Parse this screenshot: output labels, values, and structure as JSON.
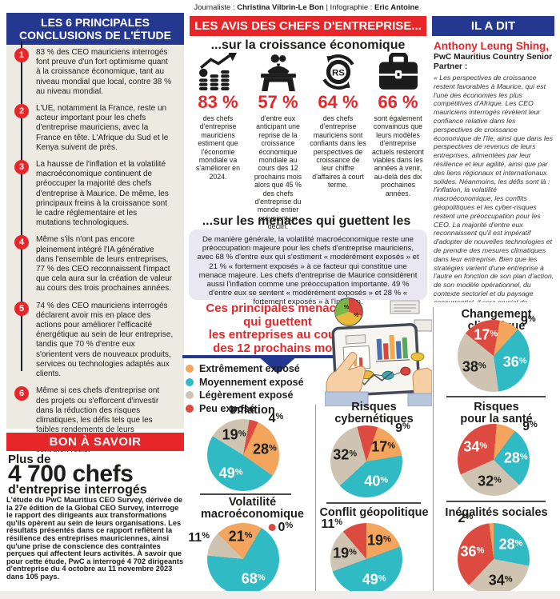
{
  "credits": {
    "label_journalist": "Journaliste : ",
    "journalist": "Christina Vilbrin-Le Bon",
    "label_infographic": " | Infographie : ",
    "infographic": "Eric Antoine"
  },
  "colors": {
    "brand_blue": "#24388f",
    "brand_red": "#e62629",
    "panel_beige": "#edeae2",
    "box_lavender": "#e9e7f1"
  },
  "left_panel": {
    "title": "LES 6 PRINCIPALES\nCONCLUSIONS DE L'ÉTUDE",
    "items": [
      {
        "num": "1",
        "text": "83 % des CEO mauriciens interrogés font preuve d'un fort optimisme quant à la croissance économique, tant au niveau mondial que local, contre 38 % au niveau mondial."
      },
      {
        "num": "2",
        "text": "L'UE, notamment la France, reste un acteur important pour les chefs d'entreprise mauriciens, avec la France en tête. L'Afrique du Sud et le Kenya suivent de près."
      },
      {
        "num": "3",
        "text": "La hausse de l'inflation et la volatilité macroéconomique continuent de préoccuper la majorité des chefs d'entreprise à Maurice. De même, les principaux freins à la croissance sont le cadre réglementaire et les mutations technologiques."
      },
      {
        "num": "4",
        "text": "Même s'ils n'ont pas encore pleinement intégré l'IA générative dans l'ensemble de leurs entreprises, 77 % des CEO reconnaissent l'impact que cela aura sur la création de valeur au cours des trois prochaines années."
      },
      {
        "num": "5",
        "text": "74 % des CEO mauriciens interrogés déclarent avoir mis en place des actions pour améliorer l'efficacité énergétique au sein de leur entreprise, tandis que 70 % d'entre eux s'orientent vers de nouveaux produits, services ou technologies adaptés aux clients."
      },
      {
        "num": "6",
        "text": "Même si ces chefs d'entreprise ont des projets ou s'efforcent d'investir dans la réduction des risques climatiques, les défis tels que les faibles rendements de leurs investissements respectueux du climat sont bien réels."
      }
    ]
  },
  "know_box": {
    "title": "BON À SAVOIR",
    "line1": "Plus de",
    "line2": "4 700 chefs",
    "line3": "d'entreprise interrogés",
    "body": "L'étude du PwC Mauritius CEO Survey, dérivée de la 27e édition de la Global CEO Survey, interroge le rapport des dirigeants aux transformations qu'ils opèrent au sein de leurs organisations. Les résultats présentés dans ce rapport reflètent la résilience des entreprises mauriciennes, ainsi qu'une prise de conscience des contraintes perçues qui affectent leurs activités. À savoir que pour cette étude, PwC a interrogé 4 702 dirigeants d'entreprise du 4 octobre au 11 novembre 2023 dans 105 pays."
  },
  "opinions": {
    "title": "LES AVIS DES CHEFS D'ENTREPRISE...",
    "subtitle": "...sur la croissance économique",
    "stats": [
      {
        "icon": "growth-chart-icon",
        "value": "83 %",
        "text": "des chefs d'entreprise mauriciens estiment que l'économie mondiale va s'améliorer en 2024."
      },
      {
        "icon": "businessman-desk-icon",
        "value": "57 %",
        "text": "d'entre eux anticipant une reprise de la croissance économique mondiale au cours des 12 prochains mois alors que 45 % des chefs d'entreprise du monde entier prévoient un déclin."
      },
      {
        "icon": "rupee-cycle-icon",
        "value": "64 %",
        "text": "des chefs d'entreprise mauriciens sont confiants dans les perspectives de croissance de leur chiffre d'affaires à court terme."
      },
      {
        "icon": "briefcase-icon",
        "value": "66 %",
        "text": "sont également convaincus que leurs modèles d'entreprise actuels resteront viables dans les années à venir, au-delà des dix prochaines années."
      }
    ]
  },
  "threats": {
    "title": "...sur les menaces qui guettent les entreprises",
    "body": "De manière générale, la volatilité macroéconomique reste une préoccupation majeure pour les chefs d'entreprise mauriciens, avec 68 % d'entre eux qui s'estiment « modérément exposés » et 21 % « fortement exposés » à ce facteur qui constitue une menace majeure. Les chefs d'entreprise de Maurice considèrent aussi l'inflation comme une préoccupation importante. 49 % d'entre eux se sentent « modérément exposés » et 28 % « fortement exposés » à l'inflation.",
    "chart_title": "Ces principales menaces\nqui guettent\nles entreprises au cours\ndes 12 prochains mois"
  },
  "il_a_dit": {
    "title": "IL A DIT",
    "name": "Anthony Leung Shing,",
    "role": "PwC Mauritius Country Senior Partner :",
    "quote": "« Les perspectives de croissance restent favorables à Maurice, qui est l'une des économies les plus compétitives d'Afrique. Les CEO mauriciens interrogés révèlent leur confiance relative dans les perspectives de croissance économique de l'île, ainsi que dans les perspectives de revenus de leurs entreprises, alimentées par leur résilience et leur agilité, ainsi que par des liens régionaux et internationaux solides. Néanmoins, les défis sont là : l'inflation, la volatilité macroéconomique, les conflits géopolitiques et les cyber-risques restent une préoccupation pour les CEO. La majorité d'entre eux reconnaissent qu'il est impératif d'adopter de nouvelles technologies et de prendre des mesures climatiques dans leur entreprise. Bien que les stratégies varient d'une entreprise à l'autre en fonction de son plan d'action, de son modèle opérationnel, du contexte sectoriel et du paysage concurrentiel, il sera crucial de surmonter les défis opérationnels et d'autres éléments essentiels à leur survie pour capitaliser sur ces opportunités de croissance. »"
  },
  "legend": {
    "palette": {
      "extreme": "#f3a55e",
      "moyen": "#2fbac4",
      "leger": "#cfc4b1",
      "peu": "#dd4a3f"
    },
    "items": [
      {
        "key": "extreme",
        "label": "Extrêmement exposé"
      },
      {
        "key": "moyen",
        "label": "Moyennement exposé"
      },
      {
        "key": "leger",
        "label": "Légèrement exposé"
      },
      {
        "key": "peu",
        "label": "Peu exposé"
      }
    ]
  },
  "chart_data": [
    {
      "type": "pie",
      "title": "Inflation",
      "rotate": 10,
      "slices": [
        {
          "label": "Peu exposé",
          "color": "peu",
          "value": 4,
          "label_angle": 42
        },
        {
          "label": "Extrêmement exposé",
          "color": "extreme",
          "value": 28
        },
        {
          "label": "Moyennement exposé",
          "color": "moyen",
          "value": 49
        },
        {
          "label": "Légèrement exposé",
          "color": "leger",
          "value": 19
        }
      ]
    },
    {
      "type": "pie",
      "title": "Risques\ncybernétiques",
      "rotate": -15,
      "slices": [
        {
          "label": "Peu exposé",
          "color": "peu",
          "value": 9,
          "label_angle": 48
        },
        {
          "label": "Extrêmement exposé",
          "color": "extreme",
          "value": 17
        },
        {
          "label": "Moyennement exposé",
          "color": "moyen",
          "value": 40
        },
        {
          "label": "Légèrement exposé",
          "color": "leger",
          "value": 32
        }
      ]
    },
    {
      "type": "pie",
      "title": "Changement climatique",
      "rotate": 10,
      "slices": [
        {
          "label": "Extrêmement exposé",
          "color": "extreme",
          "value": 9,
          "label_angle": 45
        },
        {
          "label": "Moyennement exposé",
          "color": "moyen",
          "value": 36
        },
        {
          "label": "Légèrement exposé",
          "color": "leger",
          "value": 38
        },
        {
          "label": "Peu exposé",
          "color": "peu",
          "value": 17
        }
      ]
    },
    {
      "type": "pie",
      "title": "Risques\npour la santé",
      "rotate": 5,
      "slices": [
        {
          "label": "Extrêmement exposé",
          "color": "extreme",
          "value": 9,
          "label_angle": 48
        },
        {
          "label": "Moyennement exposé",
          "color": "moyen",
          "value": 28
        },
        {
          "label": "Légèrement exposé",
          "color": "leger",
          "value": 32
        },
        {
          "label": "Peu exposé",
          "color": "peu",
          "value": 34
        }
      ]
    },
    {
      "type": "pie",
      "title": "Volatilité\nmacroéconomique",
      "rotate": -45,
      "slices": [
        {
          "label": "Extrêmement exposé",
          "color": "extreme",
          "value": 21
        },
        {
          "label": "Moyennement exposé",
          "color": "moyen",
          "value": 68
        },
        {
          "label": "Légèrement exposé",
          "color": "leger",
          "value": 11
        },
        {
          "label": "Peu exposé",
          "color": "peu",
          "value": 0,
          "label_angle": 50,
          "dot": true
        }
      ]
    },
    {
      "type": "pie",
      "title": "Conflit géopolitique",
      "rotate": 0,
      "slices": [
        {
          "label": "Extrêmement exposé",
          "color": "extreme",
          "value": 19
        },
        {
          "label": "Moyennement exposé",
          "color": "moyen",
          "value": 49
        },
        {
          "label": "Légèrement exposé",
          "color": "leger",
          "value": 19
        },
        {
          "label": "Peu exposé",
          "color": "peu",
          "value": 11,
          "label_angle": 315
        }
      ]
    },
    {
      "type": "pie",
      "title": "Inégalités sociales",
      "rotate": 0,
      "slices": [
        {
          "label": "Moyennement exposé",
          "color": "moyen",
          "value": 28
        },
        {
          "label": "Légèrement exposé",
          "color": "leger",
          "value": 34
        },
        {
          "label": "Peu exposé",
          "color": "peu",
          "value": 36
        },
        {
          "label": "Extrêmement exposé",
          "color": "extreme",
          "value": 2,
          "label_angle": 325
        }
      ]
    }
  ]
}
